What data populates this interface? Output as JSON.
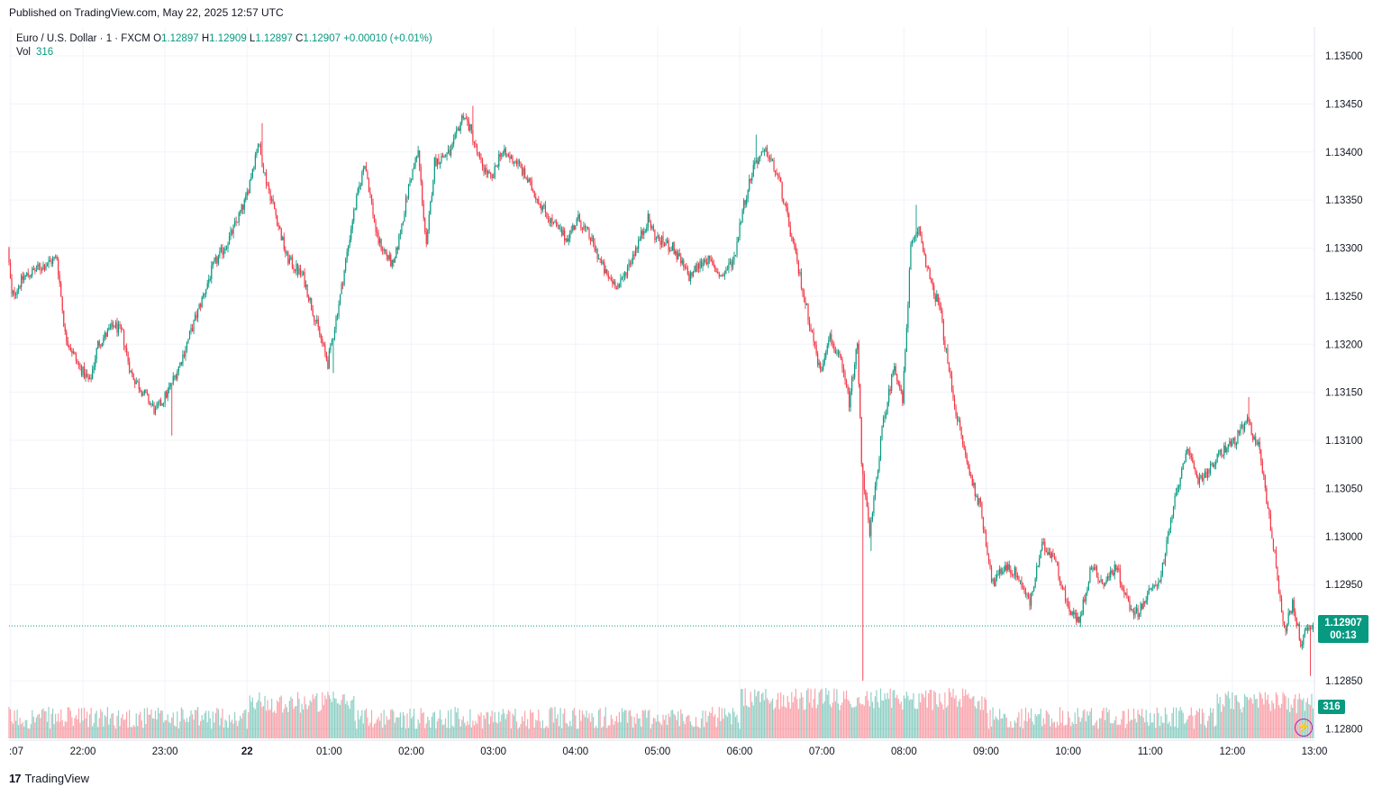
{
  "header": {
    "published": "Published on TradingView.com, May 22, 2025 12:57 UTC"
  },
  "legend": {
    "symbol": "Euro / U.S. Dollar · 1 · FXCM",
    "o_label": "O",
    "o": "1.12897",
    "h_label": "H",
    "h": "1.12909",
    "l_label": "L",
    "l": "1.12897",
    "c_label": "C",
    "c": "1.12907",
    "change": "+0.00010 (+0.01%)",
    "vol_label": "Vol",
    "vol": "316"
  },
  "badges": {
    "price": "1.12907",
    "countdown": "00:13",
    "volume": "316"
  },
  "footer": {
    "brand": "TradingView"
  },
  "colors": {
    "up": "#089981",
    "down": "#f23645",
    "grid": "#f0f3fa"
  },
  "chart_data": {
    "type": "candlestick",
    "instrument": "Euro / U.S. Dollar",
    "timeframe": "1",
    "source": "FXCM",
    "y_ticks": [
      "1.13500",
      "1.13450",
      "1.13400",
      "1.13350",
      "1.13300",
      "1.13250",
      "1.13200",
      "1.13150",
      "1.13100",
      "1.13050",
      "1.13000",
      "1.12950",
      "1.12850",
      "1.12800"
    ],
    "ylim": [
      1.1279,
      1.1353
    ],
    "x_ticks": [
      ":07",
      "22:00",
      "23:00",
      "22",
      "01:00",
      "02:00",
      "03:00",
      "04:00",
      "05:00",
      "06:00",
      "07:00",
      "08:00",
      "09:00",
      "10:00",
      "11:00",
      "12:00",
      "13:00"
    ],
    "x_tick_hours": [
      21.12,
      22,
      23,
      24,
      25,
      26,
      27,
      28,
      29,
      30,
      31,
      32,
      33,
      34,
      35,
      36,
      37
    ],
    "xlim_hours": [
      21.1,
      37.0
    ],
    "last_price": 1.12907,
    "price_path": [
      [
        21.1,
        1.133
      ],
      [
        21.15,
        1.1325
      ],
      [
        21.3,
        1.1327
      ],
      [
        21.5,
        1.1328
      ],
      [
        21.7,
        1.1329
      ],
      [
        21.8,
        1.1321
      ],
      [
        21.95,
        1.1318
      ],
      [
        22.1,
        1.1316
      ],
      [
        22.2,
        1.132
      ],
      [
        22.4,
        1.1322
      ],
      [
        22.5,
        1.1321
      ],
      [
        22.6,
        1.1317
      ],
      [
        22.75,
        1.1315
      ],
      [
        22.9,
        1.1313
      ],
      [
        23.05,
        1.1315
      ],
      [
        23.2,
        1.1318
      ],
      [
        23.4,
        1.1323
      ],
      [
        23.6,
        1.1328
      ],
      [
        23.8,
        1.1331
      ],
      [
        24.0,
        1.1335
      ],
      [
        24.15,
        1.1341
      ],
      [
        24.25,
        1.1337
      ],
      [
        24.35,
        1.1334
      ],
      [
        24.5,
        1.1329
      ],
      [
        24.7,
        1.1327
      ],
      [
        24.9,
        1.1321
      ],
      [
        25.0,
        1.1318
      ],
      [
        25.15,
        1.1325
      ],
      [
        25.3,
        1.1333
      ],
      [
        25.45,
        1.1339
      ],
      [
        25.6,
        1.1331
      ],
      [
        25.8,
        1.1328
      ],
      [
        26.0,
        1.1337
      ],
      [
        26.1,
        1.134
      ],
      [
        26.2,
        1.133
      ],
      [
        26.3,
        1.1339
      ],
      [
        26.5,
        1.134
      ],
      [
        26.65,
        1.1344
      ],
      [
        26.75,
        1.1342
      ],
      [
        26.85,
        1.1339
      ],
      [
        27.0,
        1.1337
      ],
      [
        27.1,
        1.134
      ],
      [
        27.3,
        1.1339
      ],
      [
        27.5,
        1.1336
      ],
      [
        27.7,
        1.1333
      ],
      [
        27.9,
        1.1331
      ],
      [
        28.05,
        1.1333
      ],
      [
        28.2,
        1.1331
      ],
      [
        28.4,
        1.1327
      ],
      [
        28.55,
        1.1326
      ],
      [
        28.7,
        1.1329
      ],
      [
        28.9,
        1.1333
      ],
      [
        29.0,
        1.1331
      ],
      [
        29.2,
        1.133
      ],
      [
        29.4,
        1.1327
      ],
      [
        29.6,
        1.1329
      ],
      [
        29.8,
        1.1327
      ],
      [
        29.95,
        1.1329
      ],
      [
        30.05,
        1.1334
      ],
      [
        30.2,
        1.1339
      ],
      [
        30.35,
        1.134
      ],
      [
        30.5,
        1.1337
      ],
      [
        30.6,
        1.1333
      ],
      [
        30.75,
        1.1327
      ],
      [
        30.9,
        1.1321
      ],
      [
        31.0,
        1.1317
      ],
      [
        31.1,
        1.1321
      ],
      [
        31.25,
        1.1318
      ],
      [
        31.35,
        1.1314
      ],
      [
        31.45,
        1.132
      ],
      [
        31.5,
        1.1308
      ],
      [
        31.6,
        1.13
      ],
      [
        31.75,
        1.1311
      ],
      [
        31.9,
        1.1318
      ],
      [
        32.0,
        1.1314
      ],
      [
        32.1,
        1.133
      ],
      [
        32.2,
        1.1332
      ],
      [
        32.35,
        1.1326
      ],
      [
        32.45,
        1.1324
      ],
      [
        32.55,
        1.1318
      ],
      [
        32.65,
        1.1313
      ],
      [
        32.8,
        1.1307
      ],
      [
        32.95,
        1.1303
      ],
      [
        33.1,
        1.1295
      ],
      [
        33.25,
        1.1297
      ],
      [
        33.4,
        1.1296
      ],
      [
        33.55,
        1.1293
      ],
      [
        33.7,
        1.1299
      ],
      [
        33.85,
        1.1298
      ],
      [
        34.0,
        1.1293
      ],
      [
        34.15,
        1.1291
      ],
      [
        34.3,
        1.1297
      ],
      [
        34.45,
        1.1295
      ],
      [
        34.6,
        1.1297
      ],
      [
        34.75,
        1.1293
      ],
      [
        34.85,
        1.1292
      ],
      [
        35.0,
        1.1294
      ],
      [
        35.15,
        1.1296
      ],
      [
        35.3,
        1.1303
      ],
      [
        35.45,
        1.1309
      ],
      [
        35.6,
        1.1306
      ],
      [
        35.75,
        1.1307
      ],
      [
        35.9,
        1.1309
      ],
      [
        36.05,
        1.131
      ],
      [
        36.2,
        1.1312
      ],
      [
        36.35,
        1.1309
      ],
      [
        36.45,
        1.1303
      ],
      [
        36.55,
        1.1297
      ],
      [
        36.65,
        1.129
      ],
      [
        36.75,
        1.1293
      ],
      [
        36.85,
        1.1289
      ],
      [
        36.95,
        1.12907
      ]
    ],
    "spikes": [
      {
        "t": 23.08,
        "low": 1.13105
      },
      {
        "t": 24.18,
        "high": 1.1343
      },
      {
        "t": 25.05,
        "low": 1.1317
      },
      {
        "t": 26.75,
        "high": 1.13448
      },
      {
        "t": 30.2,
        "high": 1.13418
      },
      {
        "t": 31.5,
        "low": 1.1285
      },
      {
        "t": 31.6,
        "low": 1.12985
      },
      {
        "t": 32.15,
        "high": 1.13345
      },
      {
        "t": 36.2,
        "high": 1.13145
      },
      {
        "t": 36.95,
        "low": 1.12855
      }
    ],
    "volume": {
      "last": 316
    }
  }
}
